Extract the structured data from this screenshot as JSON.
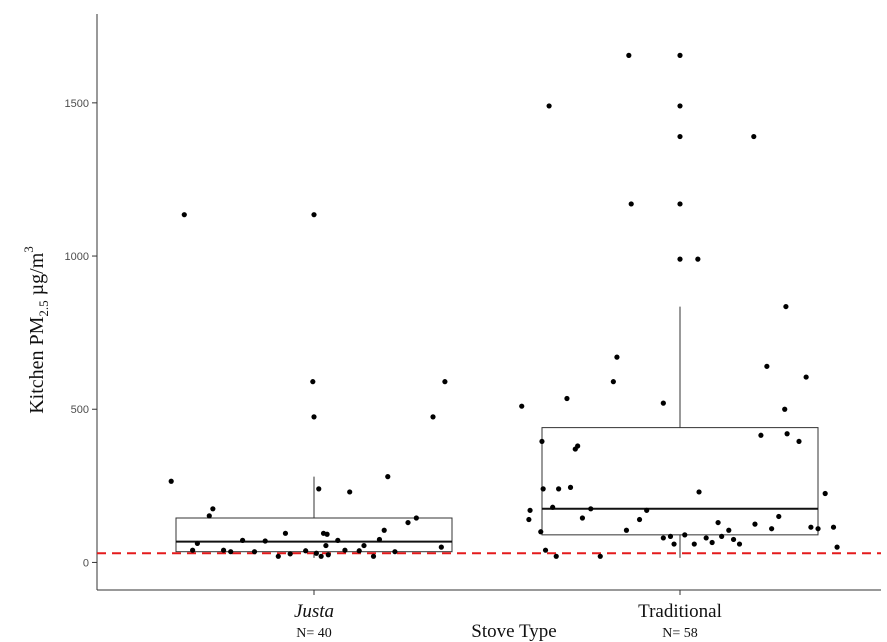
{
  "chart_data": {
    "type": "box",
    "xlabel": "Stove Type",
    "ylabel": {
      "main": "Kitchen PM",
      "sub": "2.5",
      "unit": " µg/m",
      "sup": "3"
    },
    "ylim": [
      -90,
      1790
    ],
    "yticks": [
      0,
      500,
      1000,
      1500
    ],
    "reference_line": {
      "y": 30,
      "color": "#e41a1c",
      "style": "dashed"
    },
    "groups": [
      {
        "category": "Justa",
        "n_label": "N= 40",
        "box": {
          "q1": 35,
          "median": 68,
          "q3": 145,
          "whisker_low": 15,
          "whisker_high": 280
        },
        "points": [
          {
            "x": -0.6,
            "y": 265
          },
          {
            "x": -0.545,
            "y": 1135
          },
          {
            "x": -0.51,
            "y": 40
          },
          {
            "x": -0.49,
            "y": 62
          },
          {
            "x": -0.44,
            "y": 152
          },
          {
            "x": -0.425,
            "y": 175
          },
          {
            "x": -0.38,
            "y": 40
          },
          {
            "x": -0.35,
            "y": 35
          },
          {
            "x": -0.3,
            "y": 72
          },
          {
            "x": -0.25,
            "y": 35
          },
          {
            "x": -0.205,
            "y": 70
          },
          {
            "x": -0.15,
            "y": 20
          },
          {
            "x": -0.12,
            "y": 95
          },
          {
            "x": -0.1,
            "y": 28
          },
          {
            "x": -0.035,
            "y": 38
          },
          {
            "x": -0.005,
            "y": 590
          },
          {
            "x": 0.0,
            "y": 475
          },
          {
            "x": 0.0,
            "y": 1135
          },
          {
            "x": 0.01,
            "y": 30
          },
          {
            "x": 0.02,
            "y": 240
          },
          {
            "x": 0.03,
            "y": 20
          },
          {
            "x": 0.04,
            "y": 95
          },
          {
            "x": 0.05,
            "y": 55
          },
          {
            "x": 0.055,
            "y": 92
          },
          {
            "x": 0.06,
            "y": 25
          },
          {
            "x": 0.1,
            "y": 72
          },
          {
            "x": 0.13,
            "y": 40
          },
          {
            "x": 0.15,
            "y": 230
          },
          {
            "x": 0.19,
            "y": 38
          },
          {
            "x": 0.21,
            "y": 55
          },
          {
            "x": 0.25,
            "y": 20
          },
          {
            "x": 0.275,
            "y": 75
          },
          {
            "x": 0.295,
            "y": 105
          },
          {
            "x": 0.31,
            "y": 280
          },
          {
            "x": 0.34,
            "y": 35
          },
          {
            "x": 0.395,
            "y": 130
          },
          {
            "x": 0.43,
            "y": 145
          },
          {
            "x": 0.5,
            "y": 475
          },
          {
            "x": 0.55,
            "y": 590
          },
          {
            "x": 0.535,
            "y": 50
          }
        ]
      },
      {
        "category": "Traditional",
        "n_label": "N= 58",
        "box": {
          "q1": 90,
          "median": 175,
          "q3": 440,
          "whisker_low": 15,
          "whisker_high": 835
        },
        "points": [
          {
            "x": -0.665,
            "y": 510
          },
          {
            "x": -0.635,
            "y": 140
          },
          {
            "x": -0.63,
            "y": 170
          },
          {
            "x": -0.585,
            "y": 100
          },
          {
            "x": -0.58,
            "y": 395
          },
          {
            "x": -0.575,
            "y": 240
          },
          {
            "x": -0.565,
            "y": 40
          },
          {
            "x": -0.55,
            "y": 1490
          },
          {
            "x": -0.535,
            "y": 180
          },
          {
            "x": -0.52,
            "y": 20
          },
          {
            "x": -0.51,
            "y": 240
          },
          {
            "x": -0.475,
            "y": 535
          },
          {
            "x": -0.46,
            "y": 245
          },
          {
            "x": -0.44,
            "y": 370
          },
          {
            "x": -0.43,
            "y": 380
          },
          {
            "x": -0.41,
            "y": 145
          },
          {
            "x": -0.375,
            "y": 175
          },
          {
            "x": -0.335,
            "y": 20
          },
          {
            "x": -0.28,
            "y": 590
          },
          {
            "x": -0.265,
            "y": 670
          },
          {
            "x": -0.225,
            "y": 105
          },
          {
            "x": -0.215,
            "y": 1655
          },
          {
            "x": -0.205,
            "y": 1170
          },
          {
            "x": -0.17,
            "y": 140
          },
          {
            "x": -0.14,
            "y": 170
          },
          {
            "x": -0.07,
            "y": 520
          },
          {
            "x": -0.07,
            "y": 80
          },
          {
            "x": -0.04,
            "y": 85
          },
          {
            "x": -0.025,
            "y": 60
          },
          {
            "x": 0.0,
            "y": 1655
          },
          {
            "x": 0.0,
            "y": 1490
          },
          {
            "x": 0.0,
            "y": 1390
          },
          {
            "x": 0.0,
            "y": 1170
          },
          {
            "x": 0.0,
            "y": 990
          },
          {
            "x": 0.02,
            "y": 90
          },
          {
            "x": 0.06,
            "y": 60
          },
          {
            "x": 0.075,
            "y": 990
          },
          {
            "x": 0.08,
            "y": 230
          },
          {
            "x": 0.11,
            "y": 80
          },
          {
            "x": 0.135,
            "y": 65
          },
          {
            "x": 0.16,
            "y": 130
          },
          {
            "x": 0.175,
            "y": 85
          },
          {
            "x": 0.205,
            "y": 105
          },
          {
            "x": 0.225,
            "y": 75
          },
          {
            "x": 0.25,
            "y": 60
          },
          {
            "x": 0.31,
            "y": 1390
          },
          {
            "x": 0.315,
            "y": 125
          },
          {
            "x": 0.34,
            "y": 415
          },
          {
            "x": 0.365,
            "y": 640
          },
          {
            "x": 0.385,
            "y": 110
          },
          {
            "x": 0.415,
            "y": 150
          },
          {
            "x": 0.44,
            "y": 500
          },
          {
            "x": 0.445,
            "y": 835
          },
          {
            "x": 0.45,
            "y": 420
          },
          {
            "x": 0.5,
            "y": 395
          },
          {
            "x": 0.53,
            "y": 605
          },
          {
            "x": 0.55,
            "y": 115
          },
          {
            "x": 0.58,
            "y": 110
          },
          {
            "x": 0.61,
            "y": 225
          },
          {
            "x": 0.645,
            "y": 115
          },
          {
            "x": 0.66,
            "y": 50
          }
        ]
      }
    ]
  }
}
